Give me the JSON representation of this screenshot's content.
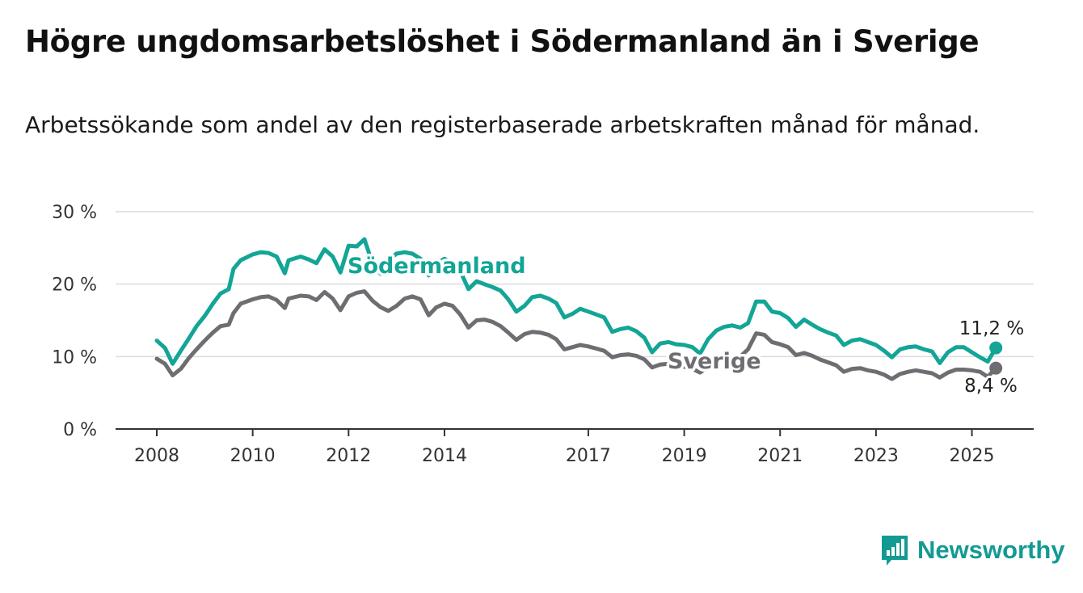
{
  "title": "Högre ungdomsarbetslöshet i Södermanland än i Sverige",
  "subtitle": "Arbetssökande som andel av den registerbaserade arbetskraften månad för månad.",
  "brand": {
    "name": "Newsworthy",
    "color": "#139a93",
    "icon": "bar-chart-speech-bubble-icon"
  },
  "chart_data": {
    "type": "line",
    "title": "Högre ungdomsarbetslöshet i Södermanland än i Sverige",
    "subtitle": "Arbetssökande som andel av den registerbaserade arbetskraften månad för månad.",
    "xlim": [
      2008,
      2025.8
    ],
    "ylim": [
      0,
      30
    ],
    "y_ticks": [
      0,
      10,
      20,
      30
    ],
    "y_tick_labels": [
      "0 %",
      "10 %",
      "20 %",
      "30 %"
    ],
    "x_ticks": [
      2008,
      2010,
      2012,
      2014,
      2017,
      2019,
      2021,
      2023,
      2025
    ],
    "x_tick_labels": [
      "2008",
      "2010",
      "2012",
      "2014",
      "2017",
      "2019",
      "2021",
      "2023",
      "2025"
    ],
    "grid": true,
    "legend": "direct labels on lines",
    "series": [
      {
        "name": "Södermanland",
        "color": "#13a596",
        "end_label": "11,2 %",
        "points": [
          [
            2008.0,
            12.2
          ],
          [
            2008.17,
            11.2
          ],
          [
            2008.33,
            9.0
          ],
          [
            2008.5,
            10.8
          ],
          [
            2008.67,
            12.5
          ],
          [
            2008.83,
            14.2
          ],
          [
            2009.0,
            15.6
          ],
          [
            2009.17,
            17.3
          ],
          [
            2009.33,
            18.7
          ],
          [
            2009.5,
            19.3
          ],
          [
            2009.6,
            22.1
          ],
          [
            2009.75,
            23.3
          ],
          [
            2010.0,
            24.1
          ],
          [
            2010.17,
            24.4
          ],
          [
            2010.33,
            24.3
          ],
          [
            2010.5,
            23.8
          ],
          [
            2010.67,
            21.5
          ],
          [
            2010.75,
            23.3
          ],
          [
            2011.0,
            23.8
          ],
          [
            2011.17,
            23.4
          ],
          [
            2011.33,
            22.9
          ],
          [
            2011.5,
            24.8
          ],
          [
            2011.67,
            23.8
          ],
          [
            2011.83,
            21.6
          ],
          [
            2012.0,
            25.3
          ],
          [
            2012.17,
            25.2
          ],
          [
            2012.33,
            26.2
          ],
          [
            2012.5,
            22.8
          ],
          [
            2012.67,
            21.4
          ],
          [
            2012.83,
            23.3
          ],
          [
            2013.0,
            24.2
          ],
          [
            2013.17,
            24.4
          ],
          [
            2013.33,
            24.2
          ],
          [
            2013.5,
            23.5
          ],
          [
            2013.67,
            21.2
          ],
          [
            2013.83,
            22.8
          ],
          [
            2014.0,
            23.5
          ],
          [
            2014.17,
            22.9
          ],
          [
            2014.33,
            21.8
          ],
          [
            2014.5,
            19.3
          ],
          [
            2014.67,
            20.4
          ],
          [
            2014.83,
            20.0
          ],
          [
            2015.0,
            19.6
          ],
          [
            2015.17,
            19.1
          ],
          [
            2015.33,
            17.9
          ],
          [
            2015.5,
            16.2
          ],
          [
            2015.67,
            17.0
          ],
          [
            2015.83,
            18.2
          ],
          [
            2016.0,
            18.4
          ],
          [
            2016.17,
            18.0
          ],
          [
            2016.33,
            17.4
          ],
          [
            2016.5,
            15.4
          ],
          [
            2016.67,
            15.9
          ],
          [
            2016.83,
            16.6
          ],
          [
            2017.0,
            16.2
          ],
          [
            2017.17,
            15.8
          ],
          [
            2017.33,
            15.4
          ],
          [
            2017.5,
            13.4
          ],
          [
            2017.67,
            13.8
          ],
          [
            2017.83,
            14.0
          ],
          [
            2018.0,
            13.5
          ],
          [
            2018.17,
            12.6
          ],
          [
            2018.33,
            10.6
          ],
          [
            2018.5,
            11.8
          ],
          [
            2018.67,
            12.0
          ],
          [
            2018.83,
            11.7
          ],
          [
            2019.0,
            11.6
          ],
          [
            2019.17,
            11.3
          ],
          [
            2019.33,
            10.4
          ],
          [
            2019.5,
            12.4
          ],
          [
            2019.67,
            13.6
          ],
          [
            2019.83,
            14.1
          ],
          [
            2020.0,
            14.3
          ],
          [
            2020.17,
            14.0
          ],
          [
            2020.33,
            14.6
          ],
          [
            2020.5,
            17.6
          ],
          [
            2020.67,
            17.6
          ],
          [
            2020.83,
            16.2
          ],
          [
            2021.0,
            16.0
          ],
          [
            2021.17,
            15.3
          ],
          [
            2021.33,
            14.1
          ],
          [
            2021.5,
            15.1
          ],
          [
            2021.67,
            14.4
          ],
          [
            2021.83,
            13.8
          ],
          [
            2022.0,
            13.3
          ],
          [
            2022.17,
            12.9
          ],
          [
            2022.33,
            11.6
          ],
          [
            2022.5,
            12.2
          ],
          [
            2022.67,
            12.4
          ],
          [
            2022.83,
            12.0
          ],
          [
            2023.0,
            11.6
          ],
          [
            2023.17,
            10.8
          ],
          [
            2023.33,
            9.9
          ],
          [
            2023.5,
            11.0
          ],
          [
            2023.67,
            11.3
          ],
          [
            2023.83,
            11.4
          ],
          [
            2024.0,
            11.0
          ],
          [
            2024.17,
            10.7
          ],
          [
            2024.33,
            9.1
          ],
          [
            2024.5,
            10.6
          ],
          [
            2024.67,
            11.3
          ],
          [
            2024.83,
            11.3
          ],
          [
            2025.0,
            10.6
          ],
          [
            2025.17,
            9.9
          ],
          [
            2025.33,
            9.3
          ],
          [
            2025.5,
            11.2
          ]
        ]
      },
      {
        "name": "Sverige",
        "color": "#6f6d72",
        "end_label": "8,4 %",
        "points": [
          [
            2008.0,
            9.7
          ],
          [
            2008.17,
            9.0
          ],
          [
            2008.33,
            7.4
          ],
          [
            2008.5,
            8.3
          ],
          [
            2008.67,
            9.8
          ],
          [
            2008.83,
            11.0
          ],
          [
            2009.0,
            12.2
          ],
          [
            2009.17,
            13.3
          ],
          [
            2009.33,
            14.2
          ],
          [
            2009.5,
            14.4
          ],
          [
            2009.6,
            16.0
          ],
          [
            2009.75,
            17.3
          ],
          [
            2010.0,
            17.9
          ],
          [
            2010.17,
            18.2
          ],
          [
            2010.33,
            18.3
          ],
          [
            2010.5,
            17.8
          ],
          [
            2010.67,
            16.7
          ],
          [
            2010.75,
            18.0
          ],
          [
            2011.0,
            18.4
          ],
          [
            2011.17,
            18.3
          ],
          [
            2011.33,
            17.8
          ],
          [
            2011.5,
            18.9
          ],
          [
            2011.67,
            18.0
          ],
          [
            2011.83,
            16.4
          ],
          [
            2012.0,
            18.3
          ],
          [
            2012.17,
            18.8
          ],
          [
            2012.33,
            19.0
          ],
          [
            2012.5,
            17.7
          ],
          [
            2012.67,
            16.8
          ],
          [
            2012.83,
            16.3
          ],
          [
            2013.0,
            17.0
          ],
          [
            2013.17,
            18.0
          ],
          [
            2013.33,
            18.3
          ],
          [
            2013.5,
            17.9
          ],
          [
            2013.67,
            15.7
          ],
          [
            2013.83,
            16.8
          ],
          [
            2014.0,
            17.3
          ],
          [
            2014.17,
            17.0
          ],
          [
            2014.33,
            15.8
          ],
          [
            2014.5,
            14.0
          ],
          [
            2014.67,
            15.0
          ],
          [
            2014.83,
            15.1
          ],
          [
            2015.0,
            14.8
          ],
          [
            2015.17,
            14.2
          ],
          [
            2015.33,
            13.3
          ],
          [
            2015.5,
            12.3
          ],
          [
            2015.67,
            13.1
          ],
          [
            2015.83,
            13.4
          ],
          [
            2016.0,
            13.3
          ],
          [
            2016.17,
            13.0
          ],
          [
            2016.33,
            12.4
          ],
          [
            2016.5,
            11.0
          ],
          [
            2016.67,
            11.3
          ],
          [
            2016.83,
            11.6
          ],
          [
            2017.0,
            11.4
          ],
          [
            2017.17,
            11.1
          ],
          [
            2017.33,
            10.8
          ],
          [
            2017.5,
            9.9
          ],
          [
            2017.67,
            10.2
          ],
          [
            2017.83,
            10.3
          ],
          [
            2018.0,
            10.1
          ],
          [
            2018.17,
            9.6
          ],
          [
            2018.33,
            8.5
          ],
          [
            2018.5,
            8.9
          ],
          [
            2018.67,
            9.0
          ],
          [
            2018.83,
            8.8
          ],
          [
            2019.0,
            8.6
          ],
          [
            2019.17,
            8.3
          ],
          [
            2019.33,
            7.8
          ],
          [
            2019.5,
            8.6
          ],
          [
            2019.67,
            9.3
          ],
          [
            2019.83,
            9.6
          ],
          [
            2020.0,
            9.8
          ],
          [
            2020.17,
            10.0
          ],
          [
            2020.33,
            11.0
          ],
          [
            2020.5,
            13.2
          ],
          [
            2020.67,
            13.0
          ],
          [
            2020.83,
            12.0
          ],
          [
            2021.0,
            11.7
          ],
          [
            2021.17,
            11.3
          ],
          [
            2021.33,
            10.2
          ],
          [
            2021.5,
            10.5
          ],
          [
            2021.67,
            10.1
          ],
          [
            2021.83,
            9.6
          ],
          [
            2022.0,
            9.2
          ],
          [
            2022.17,
            8.8
          ],
          [
            2022.33,
            7.9
          ],
          [
            2022.5,
            8.3
          ],
          [
            2022.67,
            8.4
          ],
          [
            2022.83,
            8.1
          ],
          [
            2023.0,
            7.9
          ],
          [
            2023.17,
            7.5
          ],
          [
            2023.33,
            6.9
          ],
          [
            2023.5,
            7.6
          ],
          [
            2023.67,
            7.9
          ],
          [
            2023.83,
            8.1
          ],
          [
            2024.0,
            7.9
          ],
          [
            2024.17,
            7.7
          ],
          [
            2024.33,
            7.1
          ],
          [
            2024.5,
            7.8
          ],
          [
            2024.67,
            8.2
          ],
          [
            2024.83,
            8.2
          ],
          [
            2025.0,
            8.1
          ],
          [
            2025.17,
            7.9
          ],
          [
            2025.33,
            7.2
          ],
          [
            2025.5,
            8.4
          ]
        ]
      }
    ]
  }
}
